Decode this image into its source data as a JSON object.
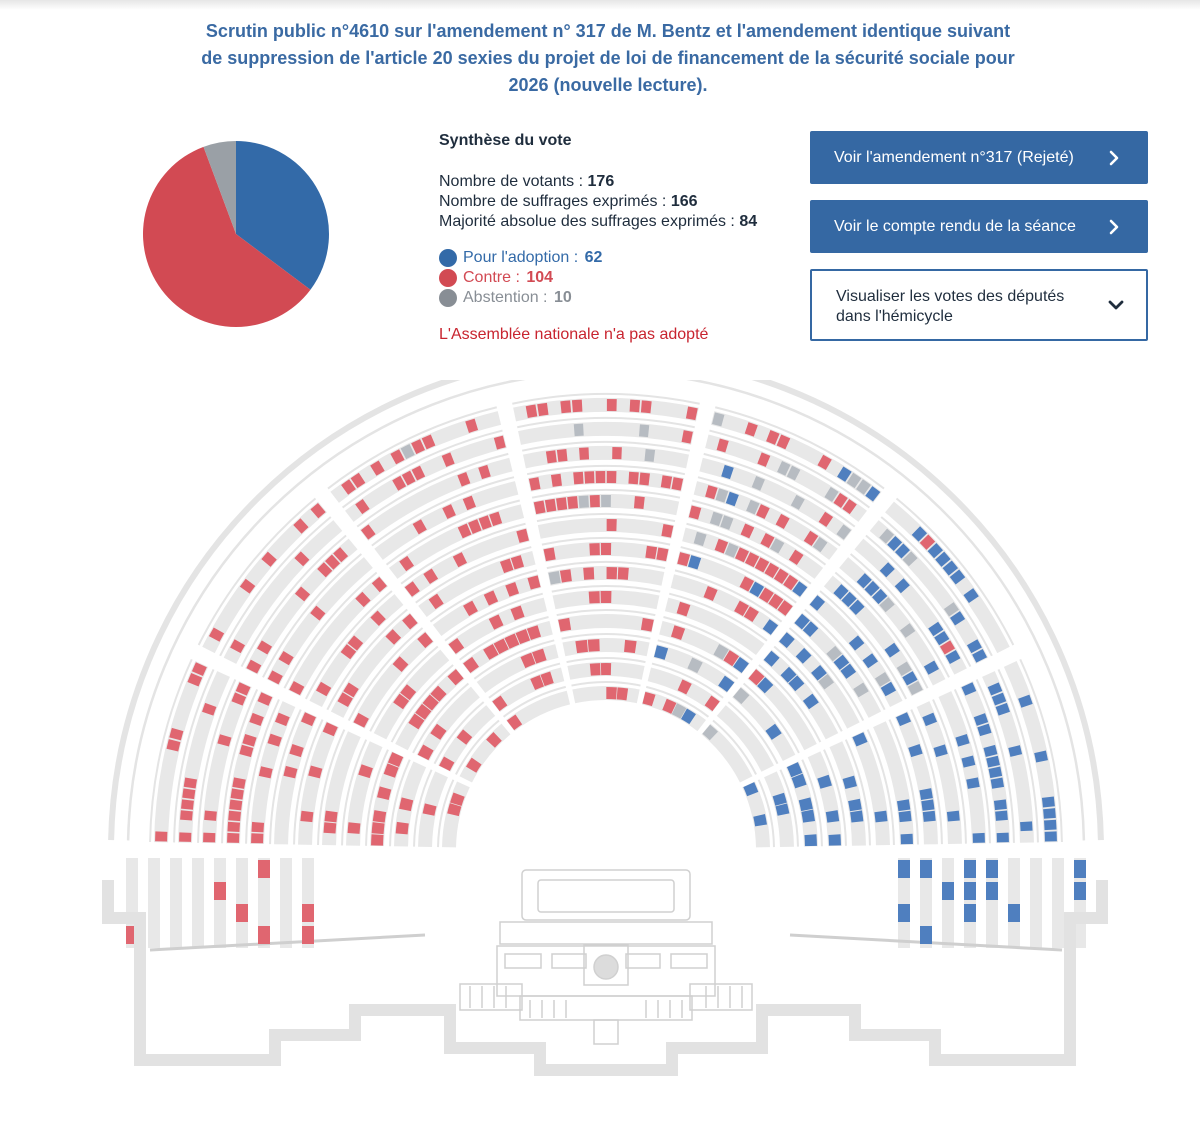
{
  "title": "Scrutin public n°4610 sur l'amendement n° 317 de M. Bentz et l'amendement identique suivant de suppression de l'article 20 sexies du projet de loi de financement de la sécurité sociale pour 2026 (nouvelle lecture).",
  "synthese": {
    "title": "Synthèse du vote",
    "votants_label": "Nombre de votants :",
    "votants": "176",
    "suffrages_label": "Nombre de suffrages exprimés :",
    "suffrages": "166",
    "majorite_label": "Majorité absolue des suffrages exprimés :",
    "majorite": "84"
  },
  "legend": [
    {
      "label": "Pour l'adoption :",
      "value": "62",
      "color": "#336aa8"
    },
    {
      "label": "Contre :",
      "value": "104",
      "color": "#d24a53"
    },
    {
      "label": "Abstention :",
      "value": "10",
      "color": "#9aa0a6"
    }
  ],
  "result": "L'Assemblée nationale n'a pas adopté",
  "buttons": {
    "amendement": "Voir l'amendement n°317 (Rejeté)",
    "compte_rendu": "Voir le compte rendu de la séance",
    "hemicycle": "Visualiser les votes des députés dans l'hémicycle"
  },
  "pie": {
    "values": [
      62,
      104,
      10
    ],
    "colors": [
      "#336aa8",
      "#d24a53",
      "#9aa0a6"
    ]
  },
  "icons": {
    "button_arrow": "chevron-right-icon",
    "dropdown_arrow": "chevron-down-icon"
  },
  "seat_colors": {
    "pour": "#4f7fbf",
    "contre": "#e06670",
    "abstention": "#b7bcc2",
    "empty": "#e8e8e8",
    "structure": "#e4e4e4"
  }
}
